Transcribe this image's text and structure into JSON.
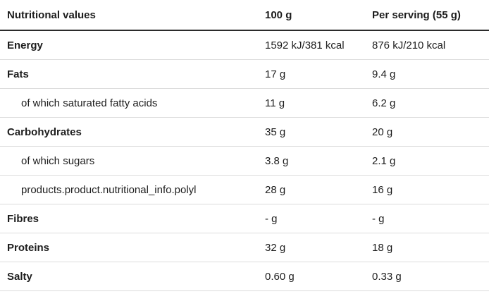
{
  "table": {
    "headers": {
      "label": "Nutritional values",
      "per_100g": "100 g",
      "per_serving": "Per serving (55 g)"
    },
    "rows": [
      {
        "label": "Energy",
        "sub": false,
        "per_100g": "1592 kJ/381 kcal",
        "per_serving": "876 kJ/210 kcal"
      },
      {
        "label": "Fats",
        "sub": false,
        "per_100g": "17 g",
        "per_serving": "9.4 g"
      },
      {
        "label": "of which saturated fatty acids",
        "sub": true,
        "per_100g": "11 g",
        "per_serving": "6.2 g"
      },
      {
        "label": "Carbohydrates",
        "sub": false,
        "per_100g": "35 g",
        "per_serving": "20 g"
      },
      {
        "label": "of which sugars",
        "sub": true,
        "per_100g": "3.8 g",
        "per_serving": "2.1 g"
      },
      {
        "label": "products.product.nutritional_info.polyl",
        "sub": true,
        "per_100g": "28 g",
        "per_serving": "16 g"
      },
      {
        "label": "Fibres",
        "sub": false,
        "per_100g": "- g",
        "per_serving": "- g"
      },
      {
        "label": "Proteins",
        "sub": false,
        "per_100g": "32 g",
        "per_serving": "18 g"
      },
      {
        "label": "Salty",
        "sub": false,
        "per_100g": "0.60 g",
        "per_serving": "0.33 g"
      }
    ],
    "colors": {
      "text": "#1d1d1d",
      "header_border": "#2b2b2b",
      "row_border": "#dcdcdc",
      "background": "#ffffff"
    }
  }
}
